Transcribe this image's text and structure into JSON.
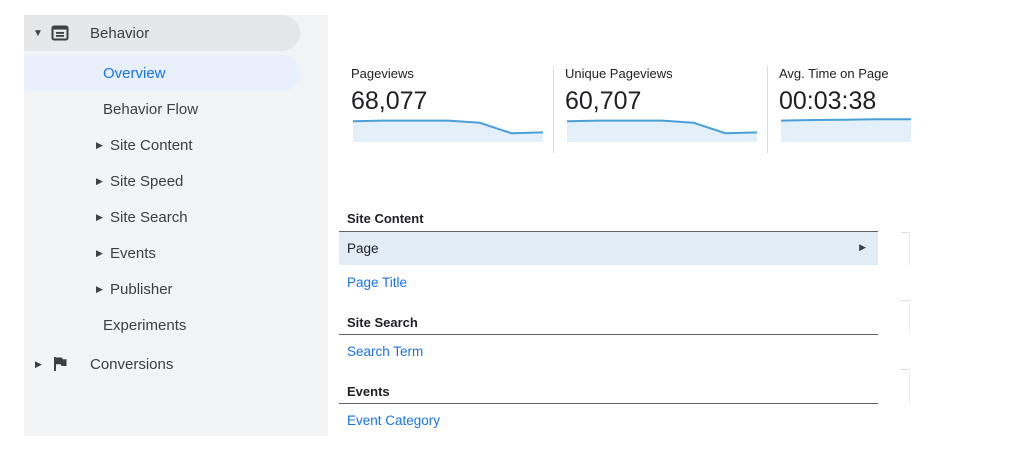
{
  "sidebar": {
    "behavior": {
      "label": "Behavior",
      "icon": "behavior-icon",
      "expanded": true
    },
    "overview": "Overview",
    "behavior_flow": "Behavior Flow",
    "site_content": "Site Content",
    "site_speed": "Site Speed",
    "site_search": "Site Search",
    "events": "Events",
    "publisher": "Publisher",
    "experiments": "Experiments",
    "conversions": {
      "label": "Conversions",
      "icon": "flag-icon",
      "expanded": false
    }
  },
  "metrics": [
    {
      "label": "Pageviews",
      "value": "68,077",
      "sparkline": [
        0.78,
        0.8,
        0.8,
        0.8,
        0.72,
        0.35,
        0.38
      ]
    },
    {
      "label": "Unique Pageviews",
      "value": "60,707",
      "sparkline": [
        0.78,
        0.8,
        0.8,
        0.8,
        0.72,
        0.35,
        0.38
      ]
    },
    {
      "label": "Avg. Time on Page",
      "value": "00:03:38",
      "sparkline": [
        0.8,
        0.82,
        0.83,
        0.85,
        0.85,
        0.82,
        0.76
      ]
    }
  ],
  "reports": {
    "site_content": {
      "title": "Site Content",
      "items": [
        "Page",
        "Page Title"
      ],
      "selected": "Page"
    },
    "site_search": {
      "title": "Site Search",
      "items": [
        "Search Term"
      ]
    },
    "events": {
      "title": "Events",
      "items": [
        "Event Category"
      ]
    }
  },
  "colors": {
    "accent": "#1a73e8",
    "spark_line": "#4a9fd8",
    "spark_fill": "#e3f0fa",
    "selected_row": "#e1ecf4"
  }
}
